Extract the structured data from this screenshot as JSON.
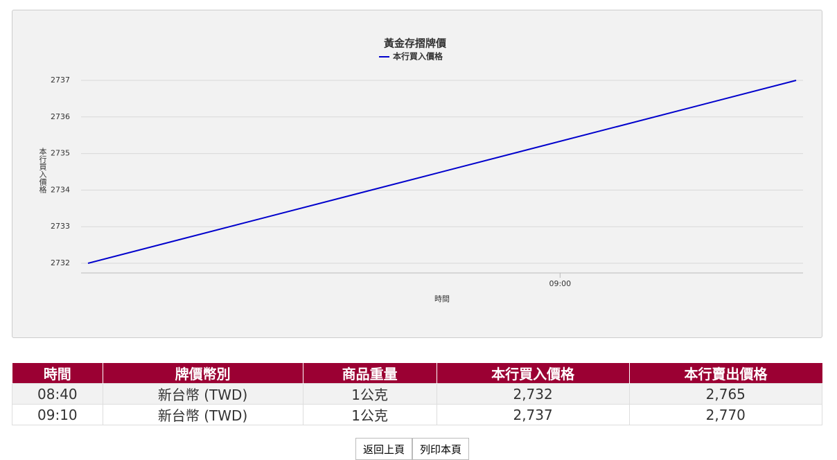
{
  "chart_data": {
    "type": "line",
    "title": "黃金存摺牌價",
    "x_label": "時間",
    "y_label": "本行買入價格",
    "x": [
      "08:40",
      "09:10"
    ],
    "xlim": [
      "08:40",
      "09:10"
    ],
    "xticks": [
      "09:00"
    ],
    "series": [
      {
        "name": "本行買入價格",
        "color": "#0000cc",
        "values": [
          2732,
          2737
        ]
      }
    ],
    "ylim": [
      2732,
      2737
    ],
    "yticks": [
      2732,
      2733,
      2734,
      2735,
      2736,
      2737
    ],
    "grid": true,
    "legend": "top"
  },
  "table": {
    "header": [
      "時間",
      "牌價幣別",
      "商品重量",
      "本行買入價格",
      "本行賣出價格"
    ],
    "rows": [
      [
        "08:40",
        "新台幣 (TWD)",
        "1公克",
        "2,732",
        "2,765"
      ],
      [
        "09:10",
        "新台幣 (TWD)",
        "1公克",
        "2,737",
        "2,770"
      ]
    ]
  },
  "buttons": [
    "返回上頁",
    "列印本頁"
  ]
}
